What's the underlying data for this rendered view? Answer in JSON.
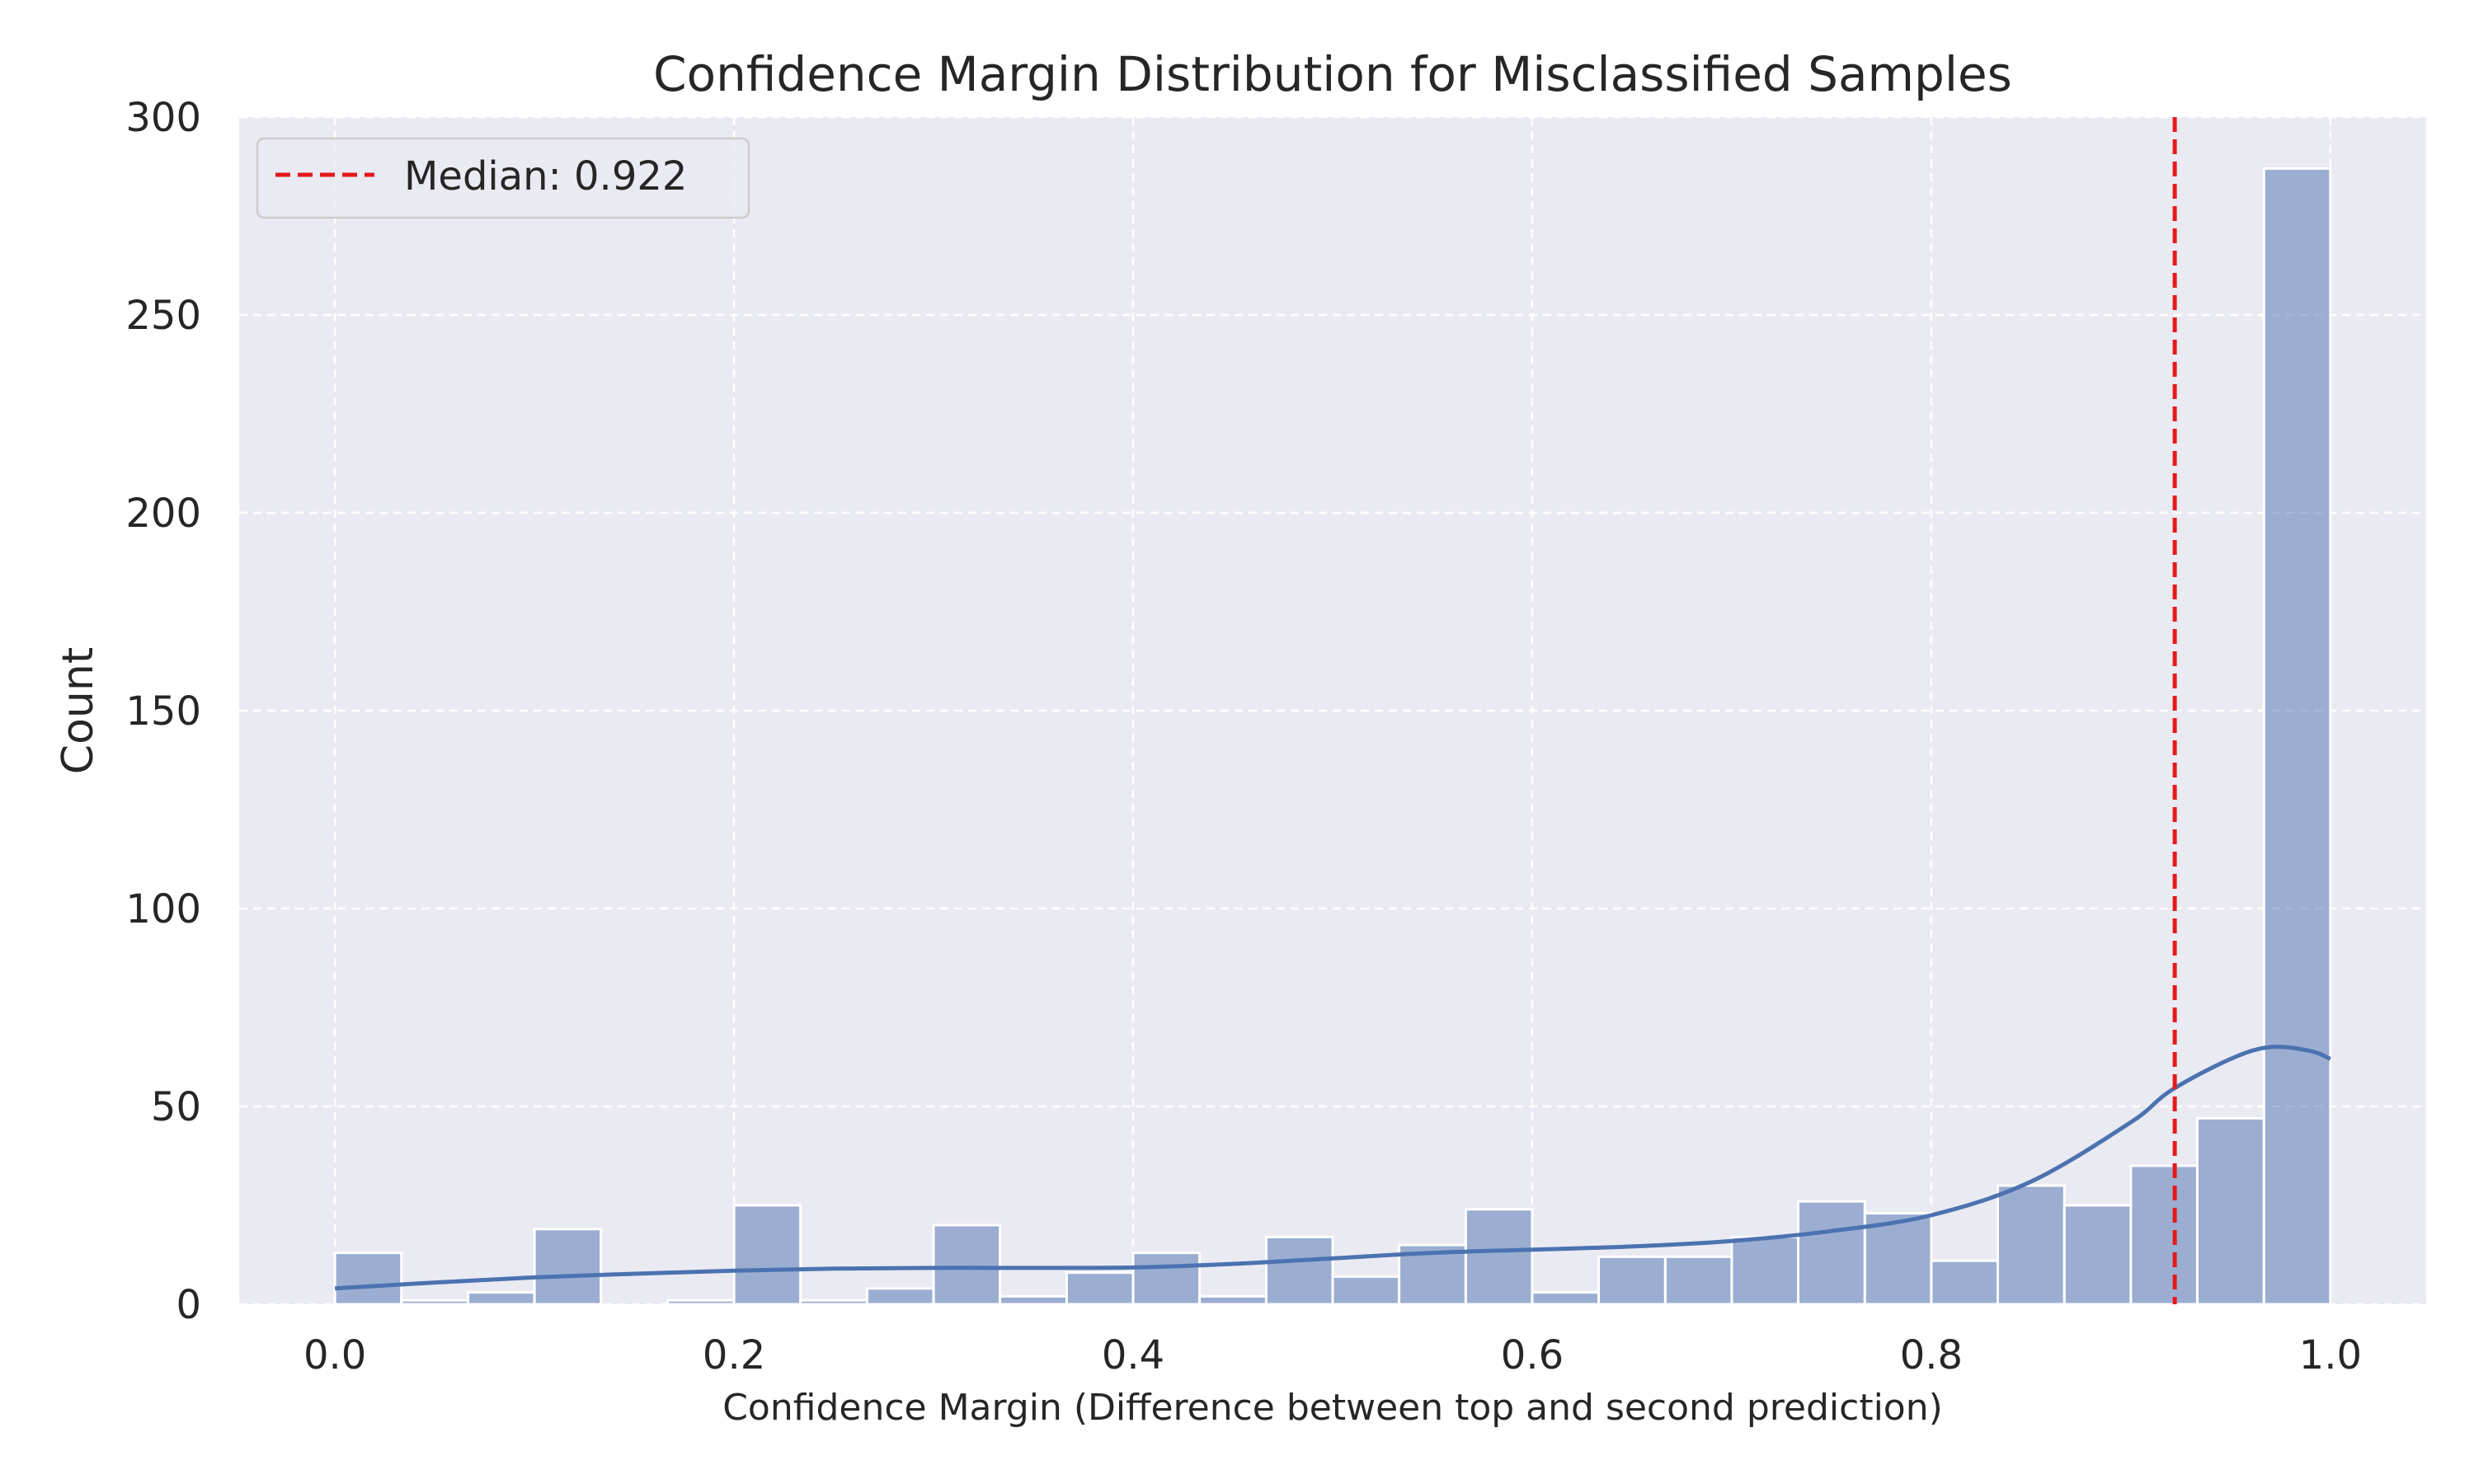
{
  "chart_data": {
    "type": "bar",
    "title": "Confidence Margin Distribution for Misclassified Samples",
    "xlabel": "Confidence Margin (Difference between top and second prediction)",
    "ylabel": "Count",
    "xlim": [
      -0.048,
      1.048
    ],
    "ylim": [
      0,
      300
    ],
    "xticks": [
      "0.0",
      "0.2",
      "0.4",
      "0.6",
      "0.8",
      "1.0"
    ],
    "yticks": [
      "0",
      "50",
      "100",
      "150",
      "200",
      "250",
      "300"
    ],
    "grid": true,
    "bin_edges": [
      0.0,
      0.0333,
      0.0667,
      0.1,
      0.1333,
      0.1667,
      0.2,
      0.2333,
      0.2667,
      0.3,
      0.3333,
      0.3667,
      0.4,
      0.4333,
      0.4667,
      0.5,
      0.5333,
      0.5667,
      0.6,
      0.6333,
      0.6667,
      0.7,
      0.7333,
      0.7667,
      0.8,
      0.8333,
      0.8667,
      0.9,
      0.9333,
      0.9667,
      1.0
    ],
    "values": [
      13,
      1,
      3,
      19,
      0,
      1,
      25,
      1,
      4,
      20,
      2,
      8,
      13,
      2,
      17,
      7,
      15,
      24,
      3,
      12,
      12,
      17,
      26,
      23,
      11,
      30,
      25,
      35,
      47,
      287
    ],
    "bar_color": "#4C72B0",
    "kde": {
      "x": [
        0.0,
        0.05,
        0.1,
        0.15,
        0.2,
        0.25,
        0.3,
        0.35,
        0.4,
        0.45,
        0.5,
        0.55,
        0.6,
        0.65,
        0.7,
        0.75,
        0.8,
        0.85,
        0.9,
        0.92,
        0.95,
        0.97,
        0.99,
        1.0
      ],
      "y": [
        4,
        5.5,
        6.8,
        7.7,
        8.5,
        9,
        9.2,
        9.2,
        9.3,
        10.2,
        11.6,
        13,
        13.8,
        14.6,
        16,
        18.5,
        22.5,
        31,
        46,
        54,
        62,
        65,
        64,
        62
      ],
      "color": "#4C72B0"
    },
    "median_line": {
      "x": 0.922,
      "label": "Median: 0.922",
      "color": "#e41a1c"
    },
    "legend_position": "top-left"
  }
}
